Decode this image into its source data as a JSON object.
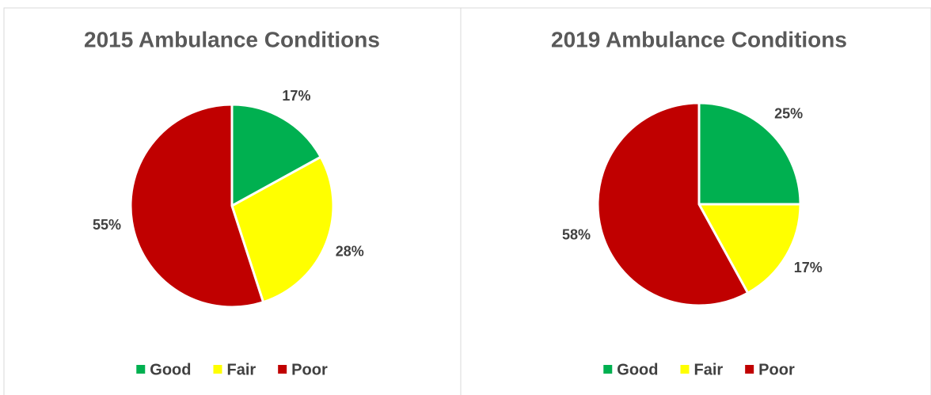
{
  "chart_data": [
    {
      "type": "pie",
      "title": "2015 Ambulance Conditions",
      "categories": [
        "Good",
        "Fair",
        "Poor"
      ],
      "values": [
        17,
        28,
        55
      ],
      "value_labels": [
        "17%",
        "28%",
        "55%"
      ],
      "colors": [
        "#00b050",
        "#ffff00",
        "#c00000"
      ],
      "legend": "bottom"
    },
    {
      "type": "pie",
      "title": "2019 Ambulance Conditions",
      "categories": [
        "Good",
        "Fair",
        "Poor"
      ],
      "values": [
        25,
        17,
        58
      ],
      "value_labels": [
        "25%",
        "17%",
        "58%"
      ],
      "colors": [
        "#00b050",
        "#ffff00",
        "#c00000"
      ],
      "legend": "bottom"
    }
  ]
}
